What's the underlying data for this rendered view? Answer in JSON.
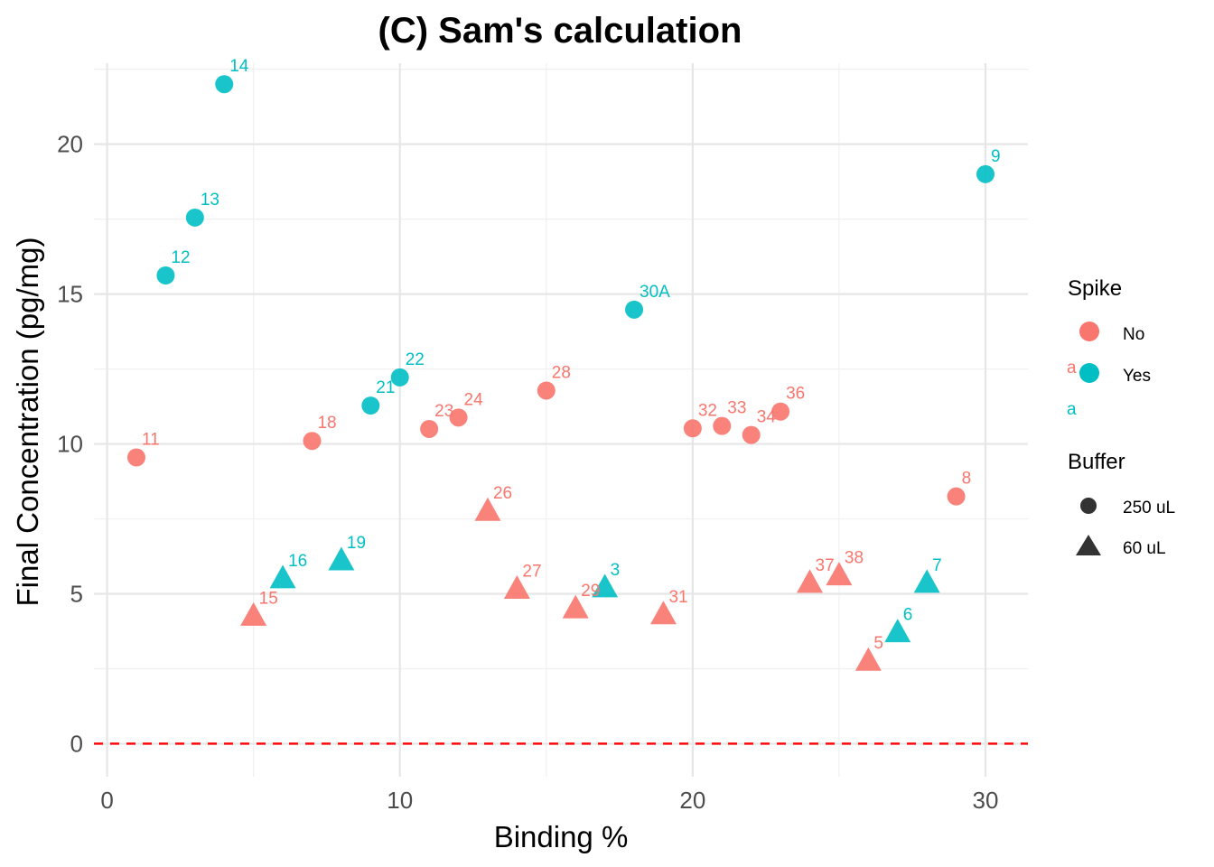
{
  "colors": {
    "No": "#F8766D",
    "Yes": "#00BFC4",
    "zero_line": "#FF0000",
    "legend_shape": "#333333"
  },
  "chart_data": {
    "type": "scatter",
    "title": "(C) Sam's calculation",
    "xlabel": "Binding %",
    "ylabel": "Final Concentration (pg/mg)",
    "xlim": [
      -0.45,
      31.45
    ],
    "ylim": [
      -1.1,
      22.7
    ],
    "x_ticks": [
      0,
      10,
      20,
      30
    ],
    "y_ticks": [
      0,
      5,
      10,
      15,
      20
    ],
    "grid": true,
    "hline": {
      "y": 0,
      "style": "dashed",
      "color": "#FF0000"
    },
    "legend": {
      "position": "right",
      "spike_title": "Spike",
      "spike_entries": [
        {
          "label": "No",
          "key_text": "a"
        },
        {
          "label": "Yes",
          "key_text": "a"
        }
      ],
      "buffer_title": "Buffer",
      "buffer_entries": [
        {
          "label": "250 uL",
          "shape": "circle"
        },
        {
          "label": "60 uL",
          "shape": "triangle"
        }
      ]
    },
    "points": [
      {
        "label": "11",
        "x": 1,
        "y": 9.55,
        "spike": "No",
        "buffer": "250 uL"
      },
      {
        "label": "12",
        "x": 2,
        "y": 15.62,
        "spike": "Yes",
        "buffer": "250 uL"
      },
      {
        "label": "13",
        "x": 3,
        "y": 17.55,
        "spike": "Yes",
        "buffer": "250 uL"
      },
      {
        "label": "14",
        "x": 4,
        "y": 22.0,
        "spike": "Yes",
        "buffer": "250 uL"
      },
      {
        "label": "15",
        "x": 5,
        "y": 4.25,
        "spike": "No",
        "buffer": "60 uL"
      },
      {
        "label": "16",
        "x": 6,
        "y": 5.5,
        "spike": "Yes",
        "buffer": "60 uL"
      },
      {
        "label": "18",
        "x": 7,
        "y": 10.1,
        "spike": "No",
        "buffer": "250 uL"
      },
      {
        "label": "19",
        "x": 8,
        "y": 6.1,
        "spike": "Yes",
        "buffer": "60 uL"
      },
      {
        "label": "21",
        "x": 9,
        "y": 11.28,
        "spike": "Yes",
        "buffer": "250 uL"
      },
      {
        "label": "22",
        "x": 10,
        "y": 12.22,
        "spike": "Yes",
        "buffer": "250 uL"
      },
      {
        "label": "23",
        "x": 11,
        "y": 10.5,
        "spike": "No",
        "buffer": "250 uL"
      },
      {
        "label": "24",
        "x": 12,
        "y": 10.88,
        "spike": "No",
        "buffer": "250 uL"
      },
      {
        "label": "26",
        "x": 13,
        "y": 7.75,
        "spike": "No",
        "buffer": "60 uL"
      },
      {
        "label": "27",
        "x": 14,
        "y": 5.15,
        "spike": "No",
        "buffer": "60 uL"
      },
      {
        "label": "28",
        "x": 15,
        "y": 11.78,
        "spike": "No",
        "buffer": "250 uL"
      },
      {
        "label": "29",
        "x": 16,
        "y": 4.5,
        "spike": "No",
        "buffer": "60 uL"
      },
      {
        "label": "3",
        "x": 17,
        "y": 5.2,
        "spike": "Yes",
        "buffer": "60 uL"
      },
      {
        "label": "30A",
        "x": 18,
        "y": 14.48,
        "spike": "Yes",
        "buffer": "250 uL"
      },
      {
        "label": "31",
        "x": 19,
        "y": 4.3,
        "spike": "No",
        "buffer": "60 uL"
      },
      {
        "label": "32",
        "x": 20,
        "y": 10.52,
        "spike": "No",
        "buffer": "250 uL"
      },
      {
        "label": "33",
        "x": 21,
        "y": 10.6,
        "spike": "No",
        "buffer": "250 uL"
      },
      {
        "label": "34",
        "x": 22,
        "y": 10.3,
        "spike": "No",
        "buffer": "250 uL"
      },
      {
        "label": "36",
        "x": 23,
        "y": 11.08,
        "spike": "No",
        "buffer": "250 uL"
      },
      {
        "label": "37",
        "x": 24,
        "y": 5.35,
        "spike": "No",
        "buffer": "60 uL"
      },
      {
        "label": "38",
        "x": 25,
        "y": 5.6,
        "spike": "No",
        "buffer": "60 uL"
      },
      {
        "label": "5",
        "x": 26,
        "y": 2.75,
        "spike": "No",
        "buffer": "60 uL"
      },
      {
        "label": "6",
        "x": 27,
        "y": 3.7,
        "spike": "Yes",
        "buffer": "60 uL"
      },
      {
        "label": "7",
        "x": 28,
        "y": 5.35,
        "spike": "Yes",
        "buffer": "60 uL"
      },
      {
        "label": "8",
        "x": 29,
        "y": 8.25,
        "spike": "No",
        "buffer": "250 uL"
      },
      {
        "label": "9",
        "x": 30,
        "y": 19.0,
        "spike": "Yes",
        "buffer": "250 uL"
      }
    ]
  }
}
